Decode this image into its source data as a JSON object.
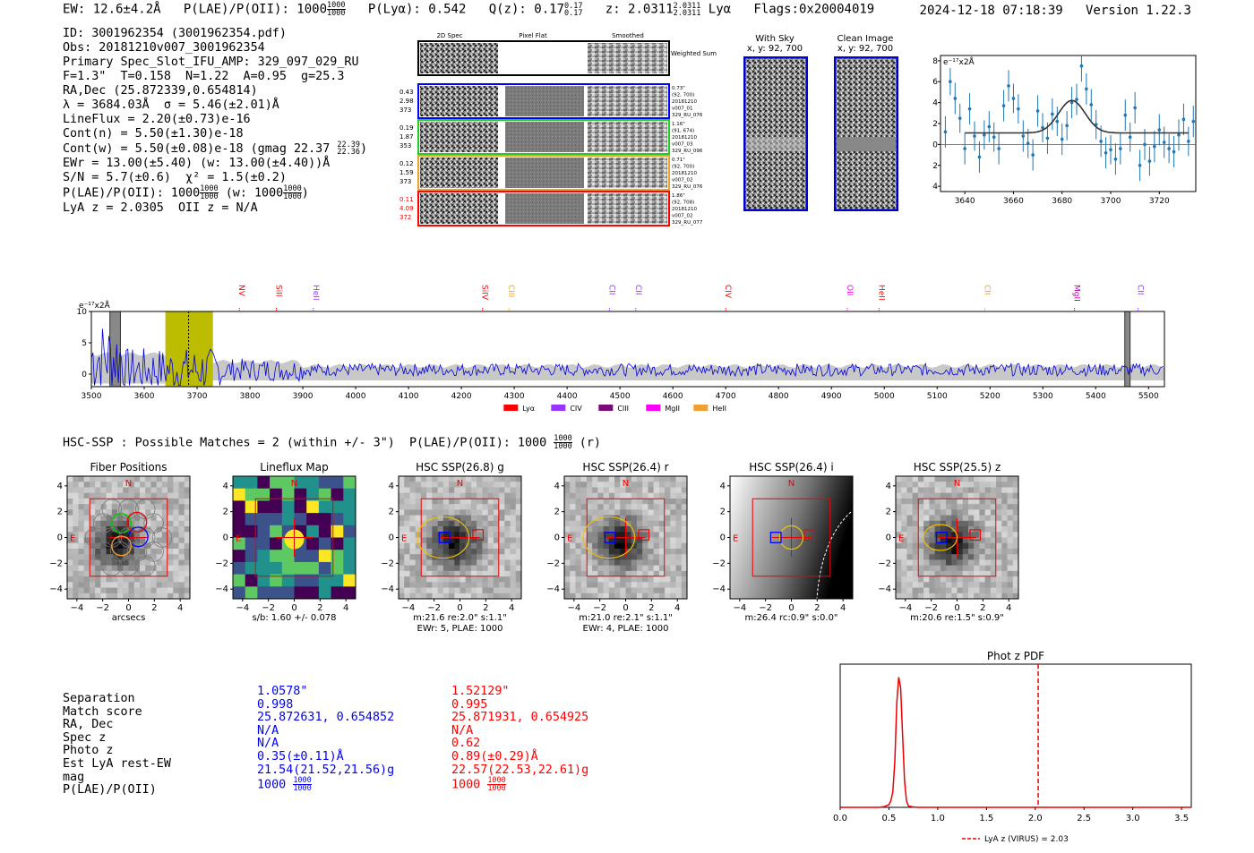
{
  "header": {
    "ew": "EW: 12.6±4.2Å",
    "plae_label": "P(LAE)/P(OII): 1000",
    "plae_hi": "1000",
    "plae_lo": "1000",
    "plya": "P(Lyα): 0.542",
    "qz_label": "Q(z): 0.17",
    "qz_hi": "0.17",
    "qz_lo": "0.17",
    "z_label": "z: 2.0311",
    "z_hi": "2.0311",
    "z_lo": "2.0311",
    "lya": "Lyα",
    "flags": "Flags:0x20004019",
    "datetime": "2024-12-18 07:18:39",
    "version": "Version 1.22.3"
  },
  "info": {
    "id": "ID: 3001962354 (3001962354.pdf)",
    "obs": "Obs: 20181210v007_3001962354",
    "primary": "Primary Spec_Slot_IFU_AMP: 329_097_029_RU",
    "params": "F=1.3\"  T=0.158  N=1.22  A=0.95  g=25.3",
    "radec": "RA,Dec (25.872339,0.654814)",
    "lambda": "λ = 3684.03Å  σ = 5.46(±2.01)Å",
    "lineflux": "LineFlux = 2.20(±0.73)e-16",
    "contn": "Cont(n) = 5.50(±1.30)e-18",
    "contw": "Cont(w) = 5.50(±0.08)e-18 (gmag 22.37",
    "contw_hi": "22.39",
    "contw_lo": "22.36",
    "ewr": "EWr = 13.00(±5.40) (w: 13.00(±4.40))Å",
    "sn": "S/N = 5.7(±0.6)  χ² = 1.5(±0.2)",
    "plae": "P(LAE)/P(OII): 1000",
    "plae_hi": "1000",
    "plae_lo": "1000",
    "plae_w": "(w: 1000",
    "plae_w_hi": "1000",
    "plae_w_lo": "1000",
    "lyaz": "LyA z = 2.0305  OII z = N/A"
  },
  "spec2d": {
    "col_labels": [
      "2D Spec",
      "Pixel Flat",
      "Smoothed"
    ],
    "weighted": "Weighted Sum",
    "rows": [
      {
        "v1": "0.43",
        "v2": "2.98",
        "v3": "373",
        "color": "#0000ff",
        "n1": "0.73\"",
        "n2": "(92, 700)",
        "n3": "20181210",
        "n4": "v007_01",
        "n5": "329_RU_076"
      },
      {
        "v1": "0.19",
        "v2": "1.87",
        "v3": "353",
        "color": "#22cc22",
        "n1": "1.16\"",
        "n2": "(91, 674)",
        "n3": "20181210",
        "n4": "v007_03",
        "n5": "329_RU_096"
      },
      {
        "v1": "0.12",
        "v2": "1.59",
        "v3": "373",
        "color": "#f0a030",
        "n1": "0.71\"",
        "n2": "(92, 700)",
        "n3": "20181210",
        "n4": "v007_02",
        "n5": "329_RU_076"
      },
      {
        "v1": "0.11",
        "v2": "4.09",
        "v3": "372",
        "color": "#ff0000",
        "n1": "1.86\"",
        "n2": "(92, 708)",
        "n3": "20181210",
        "n4": "v007_02",
        "n5": "329_RU_077"
      }
    ]
  },
  "cutouts": {
    "sky_title": "With Sky",
    "sky_coords": "x, y: 92, 700",
    "clean_title": "Clean Image",
    "clean_coords": "x, y: 92, 700"
  },
  "zoom_chart": {
    "ylabel": "e⁻¹⁷x2Å"
  },
  "chart_data": [
    {
      "type": "scatter",
      "title": "",
      "ylabel": "e⁻¹⁷x2Å",
      "xlim": [
        3630,
        3735
      ],
      "ylim": [
        -4.5,
        8.5
      ],
      "xticks": [
        3640,
        3660,
        3680,
        3700,
        3720
      ],
      "yticks": [
        -4,
        -2,
        0,
        2,
        4,
        6,
        8
      ],
      "x": [
        3632,
        3634,
        3636,
        3638,
        3640,
        3642,
        3644,
        3646,
        3648,
        3650,
        3652,
        3654,
        3656,
        3658,
        3660,
        3662,
        3664,
        3666,
        3668,
        3670,
        3672,
        3674,
        3676,
        3678,
        3680,
        3682,
        3684,
        3686,
        3688,
        3690,
        3692,
        3694,
        3696,
        3698,
        3700,
        3702,
        3704,
        3706,
        3708,
        3710,
        3712,
        3714,
        3716,
        3718,
        3720,
        3722,
        3724,
        3726,
        3728,
        3730,
        3732,
        3734
      ],
      "y": [
        1.2,
        6.0,
        4.4,
        2.5,
        -0.4,
        3.4,
        0.8,
        -1.2,
        0.9,
        1.7,
        0.7,
        -0.4,
        3.7,
        5.6,
        4.4,
        3.4,
        0.8,
        0.1,
        -1.0,
        3.2,
        1.6,
        0.6,
        2.9,
        2.2,
        0.5,
        1.8,
        4.0,
        4.3,
        7.5,
        5.3,
        3.8,
        1.9,
        0.3,
        -0.8,
        -0.5,
        -1.4,
        -0.4,
        2.8,
        0.7,
        3.5,
        -2.0,
        0.0,
        -1.6,
        -0.2,
        1.4,
        0.2,
        -0.4,
        -0.7,
        0.9,
        2.4,
        0.3,
        2.2
      ],
      "err": [
        1.5,
        1.3,
        1.5,
        1.4,
        1.5,
        1.5,
        1.4,
        1.5,
        1.4,
        1.5,
        1.4,
        1.5,
        1.5,
        1.5,
        1.4,
        1.4,
        1.5,
        1.4,
        1.5,
        1.5,
        1.4,
        1.5,
        1.5,
        1.4,
        1.5,
        1.4,
        1.5,
        1.5,
        1.5,
        1.5,
        1.5,
        1.4,
        1.5,
        1.5,
        1.4,
        1.5,
        1.5,
        1.5,
        1.4,
        1.5,
        1.5,
        1.5,
        1.4,
        1.5,
        1.5,
        1.5,
        1.4,
        1.5,
        1.5,
        1.5,
        1.4,
        1.5
      ],
      "fit": {
        "continuum": 1.1,
        "amplitude": 3.1,
        "center": 3684.03,
        "sigma": 5.46
      }
    },
    {
      "type": "line",
      "title": "",
      "ylabel": "e⁻¹⁷x2Å",
      "xlim": [
        3500,
        5530
      ],
      "ylim": [
        -2,
        10
      ],
      "xticks": [
        3500,
        3600,
        3700,
        3800,
        3900,
        4000,
        4100,
        4200,
        4300,
        4400,
        4500,
        4600,
        4700,
        4800,
        4900,
        5000,
        5100,
        5200,
        5300,
        5400,
        5500
      ],
      "yticks": [
        0,
        5,
        10
      ],
      "lines": [
        {
          "name": "NV",
          "wave": 3780,
          "color": "#ff0000"
        },
        {
          "name": "SiII",
          "wave": 3850,
          "color": "#ff0000"
        },
        {
          "name": "HeII",
          "wave": 3920,
          "color": "#9933ff"
        },
        {
          "name": "SiIV",
          "wave": 4240,
          "color": "#ff0000"
        },
        {
          "name": "CIII",
          "wave": 4290,
          "color": "#f0a030"
        },
        {
          "name": "CII",
          "wave": 4480,
          "color": "#9933ff"
        },
        {
          "name": "CII",
          "wave": 4530,
          "color": "#9933ff"
        },
        {
          "name": "CIV",
          "wave": 4700,
          "color": "#ff0000"
        },
        {
          "name": "OII",
          "wave": 4930,
          "color": "#ff00ff"
        },
        {
          "name": "HeII",
          "wave": 4990,
          "color": "#ff0000"
        },
        {
          "name": "CII",
          "wave": 5190,
          "color": "#f0a030"
        },
        {
          "name": "MgII",
          "wave": 5360,
          "color": "#aa00aa"
        },
        {
          "name": "CII",
          "wave": 5480,
          "color": "#9933ff"
        }
      ],
      "legend": [
        {
          "name": "Lyα",
          "color": "#ff0000"
        },
        {
          "name": "CIV",
          "color": "#9933ff"
        },
        {
          "name": "CIII",
          "color": "#7a0a7a"
        },
        {
          "name": "MgII",
          "color": "#ff00ff"
        },
        {
          "name": "HeII",
          "color": "#f0a030"
        }
      ],
      "highlight_range": [
        3640,
        3730
      ],
      "marker_line": 3684,
      "masked_ranges": [
        [
          3535,
          3555
        ],
        [
          5455,
          5465
        ]
      ]
    },
    {
      "type": "line",
      "title": "Phot z PDF",
      "xlim": [
        0.0,
        3.6
      ],
      "ylim": [
        0,
        1.1
      ],
      "xticks": [
        0.0,
        0.5,
        1.0,
        1.5,
        2.0,
        2.5,
        3.0,
        3.5
      ],
      "x": [
        0.0,
        0.4,
        0.45,
        0.5,
        0.52,
        0.54,
        0.56,
        0.58,
        0.6,
        0.62,
        0.64,
        0.66,
        0.68,
        0.7,
        0.75,
        0.8,
        1.0,
        3.6
      ],
      "y": [
        0.0,
        0.0,
        0.005,
        0.02,
        0.05,
        0.12,
        0.35,
        0.8,
        1.0,
        0.92,
        0.55,
        0.2,
        0.05,
        0.01,
        0.003,
        0.0,
        0.0,
        0.0
      ],
      "vline": 2.03,
      "vline_label": "LyA z (VIRUS) = 2.03"
    }
  ],
  "hsc": {
    "title": "HSC-SSP : Possible Matches = 2 (within +/- 3\")  P(LAE)/P(OII): 1000",
    "title_hi": "1000",
    "title_lo": "1000",
    "title_tail": "(r)",
    "axis_label": "arcsecs",
    "ticks": [
      "−4",
      "−2",
      "0",
      "2",
      "4"
    ],
    "panels": [
      {
        "title": "Fiber Positions",
        "cap1": "arcsecs",
        "cap2": ""
      },
      {
        "title": "Lineflux Map",
        "cap1": "s/b: 1.60 +/- 0.078",
        "cap2": ""
      },
      {
        "title": "HSC SSP(26.8) g",
        "cap1": "m:21.6  re:2.0\"  s:1.1\"",
        "cap2": "EWr: 5, PLAE: 1000"
      },
      {
        "title": "HSC SSP(26.4) r",
        "cap1": "m:21.0  re:2.1\"  s:1.1\"",
        "cap2": "EWr: 4, PLAE: 1000"
      },
      {
        "title": "HSC SSP(26.4) i",
        "cap1": "m:26.4  rc:0.9\"  s:0.0\"",
        "cap2": ""
      },
      {
        "title": "HSC SSP(25.5) z",
        "cap1": "m:20.6  re:1.5\"  s:0.9\"",
        "cap2": ""
      }
    ],
    "n_label": "N",
    "e_label": "E"
  },
  "matches": {
    "labels": [
      "Separation",
      "Match score",
      "RA, Dec",
      "Spec z",
      "Photo z",
      "Est LyA rest-EW",
      "mag",
      "P(LAE)/P(OII)"
    ],
    "blue": [
      "1.0578\"",
      "0.998",
      "25.872631, 0.654852",
      "N/A",
      "N/A",
      "0.35(±0.11)Å",
      "21.54(21.52,21.56)g",
      "1000"
    ],
    "red": [
      "1.52129\"",
      "0.995",
      "25.871931, 0.654925",
      "N/A",
      "0.62",
      "0.89(±0.29)Å",
      "22.57(22.53,22.61)g",
      "1000"
    ],
    "frac_hi": "1000",
    "frac_lo": "1000"
  }
}
